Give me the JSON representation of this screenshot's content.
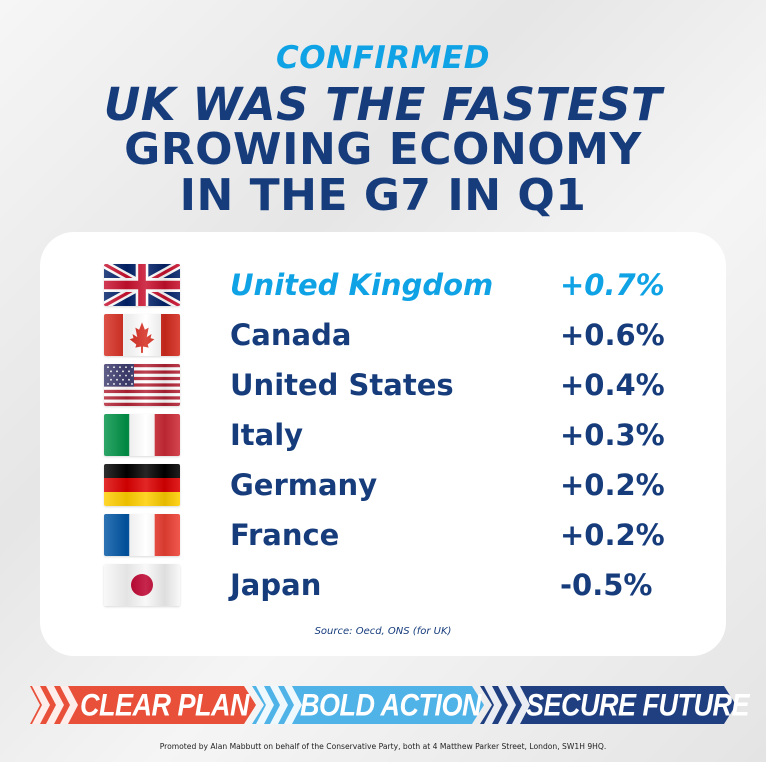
{
  "header": {
    "kicker": "CONFIRMED",
    "line1": "UK WAS THE FASTEST",
    "line2": "GROWING ECONOMY",
    "line3": "IN THE G7 IN Q1"
  },
  "rows": [
    {
      "country": "United Kingdom",
      "value": "+0.7%",
      "flag_icon": "uk-flag-icon"
    },
    {
      "country": "Canada",
      "value": "+0.6%",
      "flag_icon": "canada-flag-icon"
    },
    {
      "country": "United States",
      "value": "+0.4%",
      "flag_icon": "usa-flag-icon"
    },
    {
      "country": "Italy",
      "value": "+0.3%",
      "flag_icon": "italy-flag-icon"
    },
    {
      "country": "Germany",
      "value": "+0.2%",
      "flag_icon": "germany-flag-icon"
    },
    {
      "country": "France",
      "value": "+0.2%",
      "flag_icon": "france-flag-icon"
    },
    {
      "country": "Japan",
      "value": "-0.5%",
      "flag_icon": "japan-flag-icon"
    }
  ],
  "source": "Source: Oecd, ONS (for UK)",
  "banner": {
    "segment1": "CLEAR PLAN",
    "segment2": "BOLD ACTION",
    "segment3": "SECURE FUTURE"
  },
  "footer": "Promoted by Alan Mabbutt on behalf of the Conservative Party, both at 4 Matthew Parker Street, London, SW1H 9HQ.",
  "colors": {
    "navy": "#163c7c",
    "cyan": "#0fa3e6",
    "red": "#e8503a",
    "light_blue": "#4fb3e8",
    "dark_blue": "#1f3f80"
  }
}
